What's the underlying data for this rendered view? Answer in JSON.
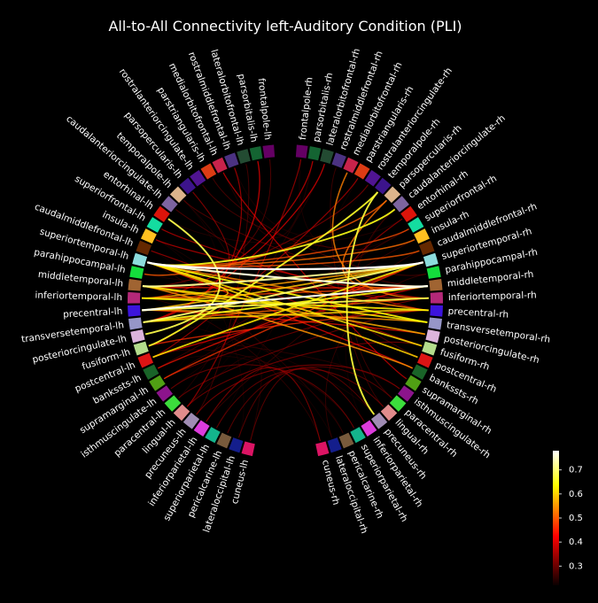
{
  "chart_data": {
    "type": "chord",
    "title": "All-to-All Connectivity left-Auditory Condition (PLI)",
    "colorbar": {
      "colormap": "hot",
      "vmin": 0.22,
      "vmax": 0.78,
      "ticks": [
        "0.3",
        "0.4",
        "0.5",
        "0.6",
        "0.7"
      ],
      "tick_values": [
        0.3,
        0.4,
        0.5,
        0.6,
        0.7
      ]
    },
    "background": "#000000",
    "left_nodes": [
      {
        "label": "frontalpole-lh",
        "color": "#640064"
      },
      {
        "label": "parsorbitalis-lh",
        "color": "#146432"
      },
      {
        "label": "lateralorbitofrontal-lh",
        "color": "#234b32"
      },
      {
        "label": "rostralmiddlefrontal-lh",
        "color": "#4b3282"
      },
      {
        "label": "medialorbitofrontal-lh",
        "color": "#c8234b"
      },
      {
        "label": "parstriangularis-lh",
        "color": "#dc3c14"
      },
      {
        "label": "rostralanteriorcingulate-lh",
        "color": "#501492"
      },
      {
        "label": "parsopercularis-lh",
        "color": "#3c148c"
      },
      {
        "label": "temporalpole-lh",
        "color": "#dcb48c"
      },
      {
        "label": "caudalanteriorcingulate-lh",
        "color": "#7d64a0"
      },
      {
        "label": "entorhinal-lh",
        "color": "#dc140a"
      },
      {
        "label": "superiorfrontal-lh",
        "color": "#14dca0"
      },
      {
        "label": "insula-lh",
        "color": "#ffc020"
      },
      {
        "label": "caudalmiddlefrontal-lh",
        "color": "#642800"
      },
      {
        "label": "superiortemporal-lh",
        "color": "#8cdcdc"
      },
      {
        "label": "parahippocampal-lh",
        "color": "#14dc3c"
      },
      {
        "label": "middletemporal-lh",
        "color": "#a06432"
      },
      {
        "label": "inferiortemporal-lh",
        "color": "#b42878"
      },
      {
        "label": "precentral-lh",
        "color": "#3c14dc"
      },
      {
        "label": "transversetemporal-lh",
        "color": "#9696c8"
      },
      {
        "label": "posteriorcingulate-lh",
        "color": "#dcb4dc"
      },
      {
        "label": "fusiform-lh",
        "color": "#b4dc8c"
      },
      {
        "label": "postcentral-lh",
        "color": "#dc1414"
      },
      {
        "label": "bankssts-lh",
        "color": "#196428"
      },
      {
        "label": "supramarginal-lh",
        "color": "#50a014"
      },
      {
        "label": "isthmuscingulate-lh",
        "color": "#8c148c"
      },
      {
        "label": "paracentral-lh",
        "color": "#3cdc3c"
      },
      {
        "label": "lingual-lh",
        "color": "#e18c8c"
      },
      {
        "label": "precuneus-lh",
        "color": "#a08cb4"
      },
      {
        "label": "inferiorparietal-lh",
        "color": "#dc3cdc"
      },
      {
        "label": "superiorparietal-lh",
        "color": "#14b48c"
      },
      {
        "label": "pericalcarine-lh",
        "color": "#785a3c"
      },
      {
        "label": "lateraloccipital-lh",
        "color": "#141e8c"
      },
      {
        "label": "cuneus-lh",
        "color": "#dc1464"
      }
    ],
    "right_nodes": [
      {
        "label": "frontalpole-rh",
        "color": "#640064"
      },
      {
        "label": "parsorbitalis-rh",
        "color": "#146432"
      },
      {
        "label": "lateralorbitofrontal-rh",
        "color": "#234b32"
      },
      {
        "label": "rostralmiddlefrontal-rh",
        "color": "#4b3282"
      },
      {
        "label": "medialorbitofrontal-rh",
        "color": "#c8234b"
      },
      {
        "label": "parstriangularis-rh",
        "color": "#dc3c14"
      },
      {
        "label": "rostralanteriorcingulate-rh",
        "color": "#501492"
      },
      {
        "label": "temporalpole-rh",
        "color": "#3c148c"
      },
      {
        "label": "parsopercularis-rh",
        "color": "#dcb48c"
      },
      {
        "label": "caudalanteriorcingulate-rh",
        "color": "#7d64a0"
      },
      {
        "label": "entorhinal-rh",
        "color": "#dc140a"
      },
      {
        "label": "superiorfrontal-rh",
        "color": "#14dca0"
      },
      {
        "label": "insula-rh",
        "color": "#ffc020"
      },
      {
        "label": "caudalmiddlefrontal-rh",
        "color": "#642800"
      },
      {
        "label": "superiortemporal-rh",
        "color": "#8cdcdc"
      },
      {
        "label": "parahippocampal-rh",
        "color": "#14dc3c"
      },
      {
        "label": "middletemporal-rh",
        "color": "#a06432"
      },
      {
        "label": "inferiortemporal-rh",
        "color": "#b42878"
      },
      {
        "label": "precentral-rh",
        "color": "#3c14dc"
      },
      {
        "label": "transversetemporal-rh",
        "color": "#9696c8"
      },
      {
        "label": "posteriorcingulate-rh",
        "color": "#dcb4dc"
      },
      {
        "label": "fusiform-rh",
        "color": "#b4dc8c"
      },
      {
        "label": "postcentral-rh",
        "color": "#dc1414"
      },
      {
        "label": "bankssts-rh",
        "color": "#196428"
      },
      {
        "label": "supramarginal-rh",
        "color": "#50a014"
      },
      {
        "label": "isthmuscingulate-rh",
        "color": "#8c148c"
      },
      {
        "label": "paracentral-rh",
        "color": "#3cdc3c"
      },
      {
        "label": "lingual-rh",
        "color": "#e18c8c"
      },
      {
        "label": "precuneus-rh",
        "color": "#a08cb4"
      },
      {
        "label": "inferiorparietal-rh",
        "color": "#dc3cdc"
      },
      {
        "label": "superiorparietal-rh",
        "color": "#14b48c"
      },
      {
        "label": "pericalcarine-rh",
        "color": "#785a3c"
      },
      {
        "label": "lateraloccipital-rh",
        "color": "#141e8c"
      },
      {
        "label": "cuneus-rh",
        "color": "#dc1464"
      }
    ],
    "links": [
      {
        "source": "superiortemporal-lh",
        "target": "superiortemporal-rh",
        "value": 0.78
      },
      {
        "source": "precentral-lh",
        "target": "middletemporal-rh",
        "value": 0.77
      },
      {
        "source": "superiortemporal-lh",
        "target": "middletemporal-rh",
        "value": 0.76
      },
      {
        "source": "middletemporal-lh",
        "target": "superiortemporal-rh",
        "value": 0.72
      },
      {
        "source": "transversetemporal-lh",
        "target": "superiortemporal-rh",
        "value": 0.7
      },
      {
        "source": "precentral-lh",
        "target": "inferiortemporal-rh",
        "value": 0.68
      },
      {
        "source": "entorhinal-lh",
        "target": "posteriorcingulate-lh",
        "value": 0.68
      },
      {
        "source": "temporalpole-rh",
        "target": "precuneus-rh",
        "value": 0.67
      },
      {
        "source": "fusiform-lh",
        "target": "temporalpole-rh",
        "value": 0.66
      },
      {
        "source": "superiortemporal-lh",
        "target": "caudalanteriorcingulate-rh",
        "value": 0.65
      },
      {
        "source": "transversetemporal-lh",
        "target": "middletemporal-rh",
        "value": 0.65
      },
      {
        "source": "superiortemporal-lh",
        "target": "transversetemporal-rh",
        "value": 0.64
      },
      {
        "source": "inferiortemporal-lh",
        "target": "precentral-rh",
        "value": 0.63
      },
      {
        "source": "middletemporal-lh",
        "target": "transversetemporal-rh",
        "value": 0.62
      },
      {
        "source": "postcentral-lh",
        "target": "superiortemporal-rh",
        "value": 0.62
      },
      {
        "source": "superiortemporal-lh",
        "target": "fusiform-rh",
        "value": 0.61
      },
      {
        "source": "transversetemporal-lh",
        "target": "precentral-rh",
        "value": 0.6
      },
      {
        "source": "superiortemporal-lh",
        "target": "postcentral-rh",
        "value": 0.6
      },
      {
        "source": "precentral-lh",
        "target": "superiortemporal-rh",
        "value": 0.59
      },
      {
        "source": "superiortemporal-lh",
        "target": "inferiortemporal-lh",
        "value": 0.58
      },
      {
        "source": "middletemporal-lh",
        "target": "posteriorcingulate-rh",
        "value": 0.57
      },
      {
        "source": "inferiortemporal-lh",
        "target": "superiortemporal-rh",
        "value": 0.56
      },
      {
        "source": "middletemporal-lh",
        "target": "bankssts-rh",
        "value": 0.55
      },
      {
        "source": "precentral-lh",
        "target": "transversetemporal-rh",
        "value": 0.55
      },
      {
        "source": "superiortemporal-lh",
        "target": "precentral-rh",
        "value": 0.54
      },
      {
        "source": "medialorbitofrontal-rh",
        "target": "inferiortemporal-rh",
        "value": 0.53
      },
      {
        "source": "parsopercularis-rh",
        "target": "middletemporal-rh",
        "value": 0.52
      },
      {
        "source": "superiortemporal-lh",
        "target": "insula-rh",
        "value": 0.52
      },
      {
        "source": "transversetemporal-lh",
        "target": "inferiortemporal-rh",
        "value": 0.51
      },
      {
        "source": "parahippocampal-lh",
        "target": "parsopercularis-rh",
        "value": 0.5
      },
      {
        "source": "superiortemporal-lh",
        "target": "caudalmiddlefrontal-rh",
        "value": 0.5
      },
      {
        "source": "superiortemporal-lh",
        "target": "superiorfrontal-rh",
        "value": 0.49
      },
      {
        "source": "inferiortemporal-lh",
        "target": "middletemporal-rh",
        "value": 0.48
      },
      {
        "source": "supramarginal-lh",
        "target": "superiortemporal-rh",
        "value": 0.47
      },
      {
        "source": "fusiform-lh",
        "target": "precentral-rh",
        "value": 0.46
      },
      {
        "source": "middletemporal-lh",
        "target": "middletemporal-rh",
        "value": 0.45
      },
      {
        "source": "precentral-lh",
        "target": "posteriorcingulate-rh",
        "value": 0.44
      },
      {
        "source": "bankssts-lh",
        "target": "superiortemporal-rh",
        "value": 0.44
      },
      {
        "source": "superiortemporal-lh",
        "target": "bankssts-rh",
        "value": 0.43
      },
      {
        "source": "postcentral-lh",
        "target": "middletemporal-rh",
        "value": 0.42
      },
      {
        "source": "parsorbitalis-lh",
        "target": "transversetemporal-lh",
        "value": 0.42
      },
      {
        "source": "lateralorbitofrontal-rh",
        "target": "transversetemporal-lh",
        "value": 0.41
      },
      {
        "source": "parsorbitalis-rh",
        "target": "inferiortemporal-lh",
        "value": 0.4
      },
      {
        "source": "medialorbitofrontal-lh",
        "target": "supramarginal-rh",
        "value": 0.4
      },
      {
        "source": "superiorfrontal-lh",
        "target": "precentral-rh",
        "value": 0.39
      },
      {
        "source": "insula-lh",
        "target": "inferiortemporal-rh",
        "value": 0.39
      },
      {
        "source": "rostralmiddlefrontal-lh",
        "target": "fusiform-lh",
        "value": 0.38
      },
      {
        "source": "parstriangularis-rh",
        "target": "postcentral-lh",
        "value": 0.38
      },
      {
        "source": "frontalpole-rh",
        "target": "lingual-lh",
        "value": 0.37
      },
      {
        "source": "caudalmiddlefrontal-lh",
        "target": "fusiform-rh",
        "value": 0.37
      },
      {
        "source": "parsopercularis-lh",
        "target": "middletemporal-lh",
        "value": 0.36
      },
      {
        "source": "entorhinal-rh",
        "target": "inferiortemporal-rh",
        "value": 0.36
      },
      {
        "source": "inferiorparietal-lh",
        "target": "cuneus-rh",
        "value": 0.35
      },
      {
        "source": "precuneus-lh",
        "target": "isthmuscingulate-rh",
        "value": 0.35
      },
      {
        "source": "lingual-lh",
        "target": "fusiform-rh",
        "value": 0.34
      },
      {
        "source": "rostralanteriorcingulate-rh",
        "target": "middletemporal-lh",
        "value": 0.34
      },
      {
        "source": "supramarginal-lh",
        "target": "inferiortemporal-rh",
        "value": 0.34
      },
      {
        "source": "isthmuscingulate-lh",
        "target": "superiorparietal-rh",
        "value": 0.33
      },
      {
        "source": "paracentral-lh",
        "target": "precentral-rh",
        "value": 0.33
      },
      {
        "source": "superiorparietal-lh",
        "target": "lingual-rh",
        "value": 0.33
      },
      {
        "source": "pericalcarine-lh",
        "target": "paracentral-rh",
        "value": 0.32
      },
      {
        "source": "cuneus-lh",
        "target": "precuneus-rh",
        "value": 0.32
      },
      {
        "source": "lateraloccipital-lh",
        "target": "inferiorparietal-rh",
        "value": 0.32
      },
      {
        "source": "temporalpole-lh",
        "target": "middletemporal-rh",
        "value": 0.31
      },
      {
        "source": "caudalanteriorcingulate-lh",
        "target": "postcentral-rh",
        "value": 0.31
      },
      {
        "source": "frontalpole-lh",
        "target": "superiortemporal-lh",
        "value": 0.31
      },
      {
        "source": "parstriangularis-lh",
        "target": "parahippocampal-rh",
        "value": 0.3
      },
      {
        "source": "rostralanteriorcingulate-lh",
        "target": "insula-rh",
        "value": 0.3
      },
      {
        "source": "lateralorbitofrontal-lh",
        "target": "precuneus-lh",
        "value": 0.3
      },
      {
        "source": "rostralmiddlefrontal-rh",
        "target": "lingual-rh",
        "value": 0.29
      },
      {
        "source": "caudalanteriorcingulate-rh",
        "target": "paracentral-rh",
        "value": 0.29
      },
      {
        "source": "superiorfrontal-rh",
        "target": "bankssts-lh",
        "value": 0.29
      },
      {
        "source": "insula-rh",
        "target": "supramarginal-lh",
        "value": 0.28
      },
      {
        "source": "caudalmiddlefrontal-rh",
        "target": "inferiorparietal-lh",
        "value": 0.28
      },
      {
        "source": "parahippocampal-rh",
        "target": "lateraloccipital-rh",
        "value": 0.28
      },
      {
        "source": "bankssts-rh",
        "target": "middletemporal-lh",
        "value": 0.28
      },
      {
        "source": "isthmuscingulate-rh",
        "target": "fusiform-lh",
        "value": 0.27
      },
      {
        "source": "pericalcarine-rh",
        "target": "superiortemporal-lh",
        "value": 0.27
      },
      {
        "source": "cuneus-rh",
        "target": "inferiortemporal-lh",
        "value": 0.27
      },
      {
        "source": "superiorparietal-rh",
        "target": "postcentral-lh",
        "value": 0.27
      },
      {
        "source": "medialorbitofrontal-lh",
        "target": "parsorbitalis-rh",
        "value": 0.26
      },
      {
        "source": "entorhinal-lh",
        "target": "entorhinal-rh",
        "value": 0.26
      },
      {
        "source": "parahippocampal-lh",
        "target": "temporalpole-lh",
        "value": 0.26
      },
      {
        "source": "lingual-lh",
        "target": "cuneus-lh",
        "value": 0.26
      },
      {
        "source": "paracentral-lh",
        "target": "lateralorbitofrontal-rh",
        "value": 0.26
      },
      {
        "source": "frontalpole-rh",
        "target": "superiorfrontal-rh",
        "value": 0.25
      },
      {
        "source": "precuneus-rh",
        "target": "transversetemporal-lh",
        "value": 0.25
      },
      {
        "source": "insula-lh",
        "target": "fusiform-lh",
        "value": 0.25
      },
      {
        "source": "bankssts-lh",
        "target": "pericalcarine-rh",
        "value": 0.25
      },
      {
        "source": "rostralmiddlefrontal-lh",
        "target": "parsopercularis-rh",
        "value": 0.25
      },
      {
        "source": "isthmuscingulate-lh",
        "target": "entorhinal-rh",
        "value": 0.25
      },
      {
        "source": "caudalmiddlefrontal-lh",
        "target": "lateraloccipital-rh",
        "value": 0.24
      },
      {
        "source": "superiorparietal-lh",
        "target": "parstriangularis-rh",
        "value": 0.24
      },
      {
        "source": "temporalpole-lh",
        "target": "postcentral-lh",
        "value": 0.24
      },
      {
        "source": "lateraloccipital-lh",
        "target": "insula-lh",
        "value": 0.24
      },
      {
        "source": "inferiorparietal-rh",
        "target": "caudalanteriorcingulate-rh",
        "value": 0.24
      },
      {
        "source": "parsorbitalis-lh",
        "target": "supramarginal-lh",
        "value": 0.23
      },
      {
        "source": "rostralanteriorcingulate-rh",
        "target": "lingual-lh",
        "value": 0.23
      },
      {
        "source": "fusiform-rh",
        "target": "precuneus-rh",
        "value": 0.23
      },
      {
        "source": "posteriorcingulate-lh",
        "target": "parsorbitalis-rh",
        "value": 0.23
      }
    ]
  }
}
